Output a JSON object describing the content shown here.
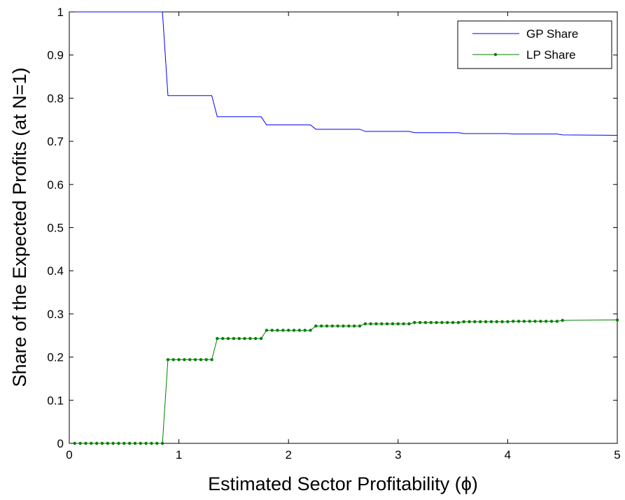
{
  "chart_data": {
    "type": "line",
    "xlabel": "Estimated Sector Profitability (ϕ)",
    "ylabel": "Share of the Expected Profits (at N=1)",
    "xlim": [
      0,
      5
    ],
    "ylim": [
      0,
      1
    ],
    "x_ticks": [
      "0",
      "1",
      "2",
      "3",
      "4",
      "5"
    ],
    "y_ticks": [
      "0",
      "0.1",
      "0.2",
      "0.3",
      "0.4",
      "0.5",
      "0.6",
      "0.7",
      "0.8",
      "0.9",
      "1"
    ],
    "grid": false,
    "legend_position": "top-right",
    "series": [
      {
        "name": "GP Share",
        "color": "#0000ff",
        "marker": "none",
        "points": [
          [
            0.05,
            1.0
          ],
          [
            0.85,
            1.0
          ],
          [
            0.9,
            0.806
          ],
          [
            1.3,
            0.806
          ],
          [
            1.35,
            0.757
          ],
          [
            1.75,
            0.757
          ],
          [
            1.8,
            0.738
          ],
          [
            2.2,
            0.738
          ],
          [
            2.25,
            0.728
          ],
          [
            2.65,
            0.728
          ],
          [
            2.7,
            0.723
          ],
          [
            3.1,
            0.723
          ],
          [
            3.15,
            0.72
          ],
          [
            3.55,
            0.72
          ],
          [
            3.6,
            0.718
          ],
          [
            4.0,
            0.718
          ],
          [
            4.05,
            0.717
          ],
          [
            4.45,
            0.717
          ],
          [
            4.5,
            0.715
          ],
          [
            5.0,
            0.714
          ]
        ]
      },
      {
        "name": "LP Share",
        "color": "#008000",
        "marker": "dot",
        "points": [
          [
            0.05,
            0.0
          ],
          [
            0.85,
            0.0
          ],
          [
            0.9,
            0.194
          ],
          [
            1.3,
            0.194
          ],
          [
            1.35,
            0.243
          ],
          [
            1.75,
            0.243
          ],
          [
            1.8,
            0.262
          ],
          [
            2.2,
            0.262
          ],
          [
            2.25,
            0.272
          ],
          [
            2.65,
            0.272
          ],
          [
            2.7,
            0.277
          ],
          [
            3.1,
            0.277
          ],
          [
            3.15,
            0.28
          ],
          [
            3.55,
            0.28
          ],
          [
            3.6,
            0.282
          ],
          [
            4.0,
            0.282
          ],
          [
            4.05,
            0.283
          ],
          [
            4.45,
            0.283
          ],
          [
            4.5,
            0.285
          ],
          [
            5.0,
            0.286
          ]
        ]
      }
    ]
  }
}
